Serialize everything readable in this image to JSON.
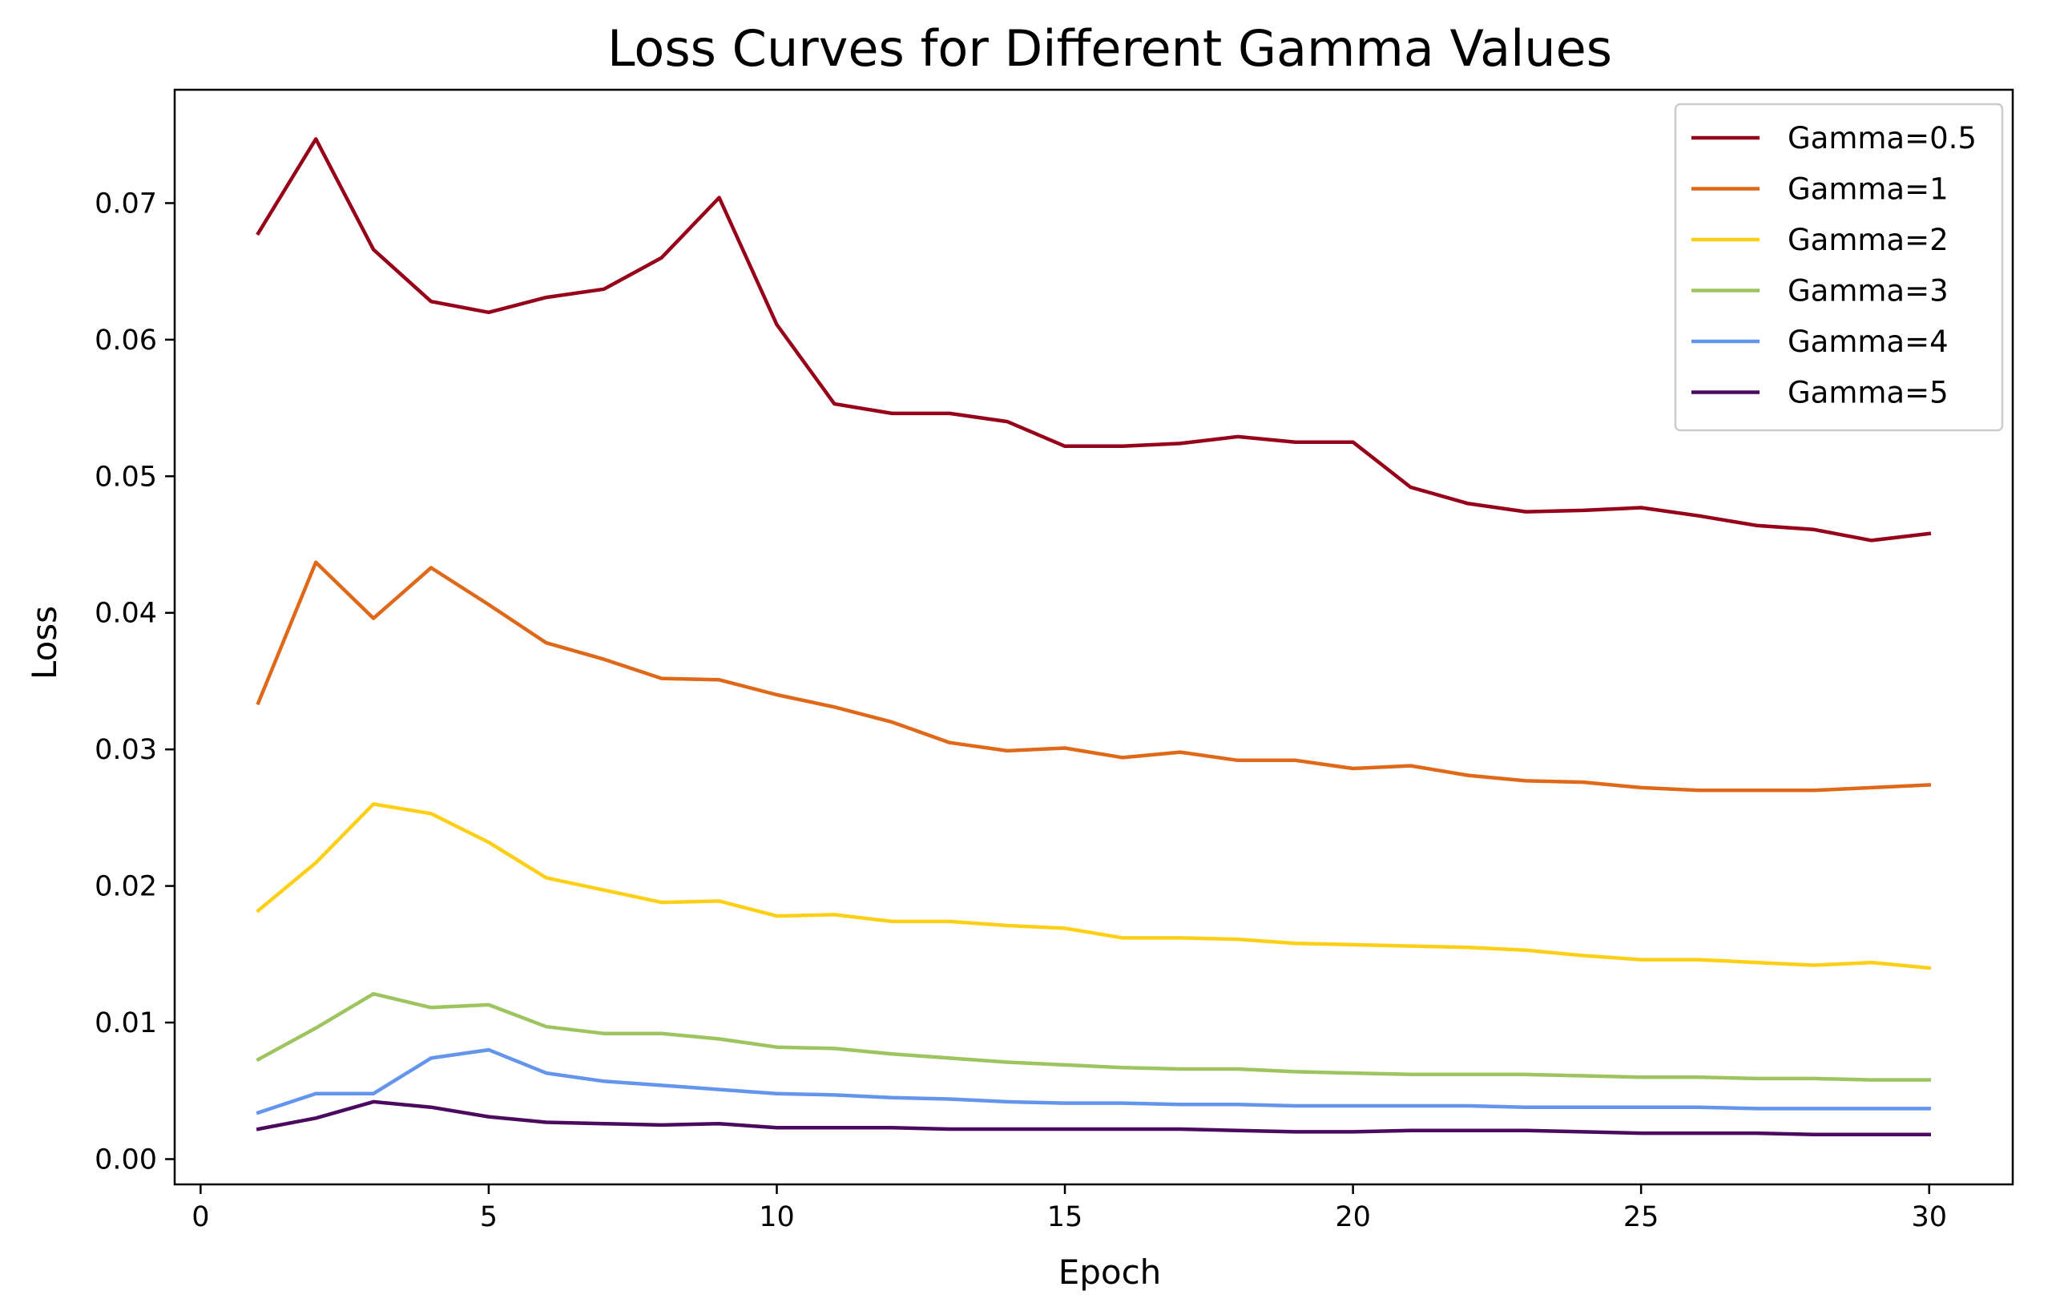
{
  "chart_data": {
    "type": "line",
    "title": "Loss Curves for Different Gamma Values",
    "xlabel": "Epoch",
    "ylabel": "Loss",
    "xlim": [
      -0.45,
      31.45
    ],
    "ylim": [
      -0.00185,
      0.0783
    ],
    "xticks": [
      0,
      5,
      10,
      15,
      20,
      25,
      30
    ],
    "yticks": [
      0.0,
      0.01,
      0.02,
      0.03,
      0.04,
      0.05,
      0.06,
      0.07
    ],
    "ytick_labels": [
      "0.00",
      "0.01",
      "0.02",
      "0.03",
      "0.04",
      "0.05",
      "0.06",
      "0.07"
    ],
    "grid": false,
    "legend_position": "top-right",
    "x": [
      1,
      2,
      3,
      4,
      5,
      6,
      7,
      8,
      9,
      10,
      11,
      12,
      13,
      14,
      15,
      16,
      17,
      18,
      19,
      20,
      21,
      22,
      23,
      24,
      25,
      26,
      27,
      28,
      29,
      30
    ],
    "series": [
      {
        "name": "Gamma=0.5",
        "color": "#960018",
        "values": [
          0.0678,
          0.0747,
          0.0666,
          0.0628,
          0.062,
          0.0631,
          0.0637,
          0.066,
          0.0704,
          0.0611,
          0.0553,
          0.0546,
          0.0546,
          0.054,
          0.0522,
          0.0522,
          0.0524,
          0.0529,
          0.0525,
          0.0525,
          0.0492,
          0.048,
          0.0474,
          0.0475,
          0.0477,
          0.0471,
          0.0464,
          0.0461,
          0.0453,
          0.0458
        ]
      },
      {
        "name": "Gamma=1",
        "color": "#e06919",
        "values": [
          0.0334,
          0.0437,
          0.0396,
          0.0433,
          0.0406,
          0.0378,
          0.0366,
          0.0352,
          0.0351,
          0.034,
          0.0331,
          0.032,
          0.0305,
          0.0299,
          0.0301,
          0.0294,
          0.0298,
          0.0292,
          0.0292,
          0.0286,
          0.0288,
          0.0281,
          0.0277,
          0.0276,
          0.0272,
          0.027,
          0.027,
          0.027,
          0.0272,
          0.0274
        ]
      },
      {
        "name": "Gamma=2",
        "color": "#fdd017",
        "values": [
          0.0182,
          0.0217,
          0.026,
          0.0253,
          0.0232,
          0.0206,
          0.0197,
          0.0188,
          0.0189,
          0.0178,
          0.0179,
          0.0174,
          0.0174,
          0.0171,
          0.0169,
          0.0162,
          0.0162,
          0.0161,
          0.0158,
          0.0157,
          0.0156,
          0.0155,
          0.0153,
          0.0149,
          0.0146,
          0.0146,
          0.0144,
          0.0142,
          0.0144,
          0.014
        ]
      },
      {
        "name": "Gamma=3",
        "color": "#9dc45f",
        "values": [
          0.0073,
          0.0096,
          0.0121,
          0.0111,
          0.0113,
          0.0097,
          0.0092,
          0.0092,
          0.0088,
          0.0082,
          0.0081,
          0.0077,
          0.0074,
          0.0071,
          0.0069,
          0.0067,
          0.0066,
          0.0066,
          0.0064,
          0.0063,
          0.0062,
          0.0062,
          0.0062,
          0.0061,
          0.006,
          0.006,
          0.0059,
          0.0059,
          0.0058,
          0.0058
        ]
      },
      {
        "name": "Gamma=4",
        "color": "#6495ed",
        "values": [
          0.0034,
          0.0048,
          0.0048,
          0.0074,
          0.008,
          0.0063,
          0.0057,
          0.0054,
          0.0051,
          0.0048,
          0.0047,
          0.0045,
          0.0044,
          0.0042,
          0.0041,
          0.0041,
          0.004,
          0.004,
          0.0039,
          0.0039,
          0.0039,
          0.0039,
          0.0038,
          0.0038,
          0.0038,
          0.0038,
          0.0037,
          0.0037,
          0.0037,
          0.0037
        ]
      },
      {
        "name": "Gamma=5",
        "color": "#4b0a5f",
        "values": [
          0.0022,
          0.003,
          0.0042,
          0.0038,
          0.0031,
          0.0027,
          0.0026,
          0.0025,
          0.0026,
          0.0023,
          0.0023,
          0.0023,
          0.0022,
          0.0022,
          0.0022,
          0.0022,
          0.0022,
          0.0021,
          0.002,
          0.002,
          0.0021,
          0.0021,
          0.0021,
          0.002,
          0.0019,
          0.0019,
          0.0019,
          0.0018,
          0.0018,
          0.0018
        ]
      }
    ]
  }
}
